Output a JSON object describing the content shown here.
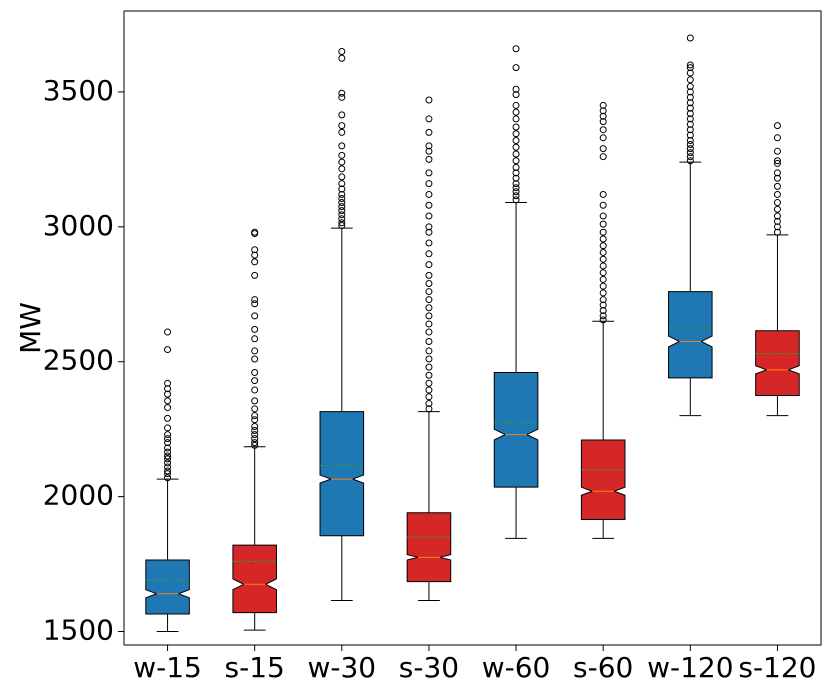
{
  "chart_data": {
    "type": "box",
    "title": "",
    "xlabel": "",
    "ylabel": "MW",
    "ylim": [
      1450,
      3800
    ],
    "yticks": [
      1500,
      2000,
      2500,
      3000,
      3500
    ],
    "ytick_labels": [
      "1500",
      "2000",
      "2500",
      "3000",
      "3500"
    ],
    "categories": [
      "w-15",
      "s-15",
      "w-30",
      "s-30",
      "w-60",
      "s-60",
      "w-120",
      "s-120"
    ],
    "colors": {
      "w": "#1f77b4",
      "s": "#d62728",
      "median": "#ff7f0e",
      "mean": "#2ca02c",
      "line": "#000000"
    },
    "boxes": [
      {
        "label": "w-15",
        "color_key": "w",
        "whisker_low": 1500,
        "q1": 1565,
        "median": 1640,
        "mean": 1690,
        "q3": 1765,
        "whisker_high": 2065,
        "notch": [
          1625,
          1655
        ],
        "outliers": [
          2070,
          2085,
          2095,
          2110,
          2125,
          2140,
          2150,
          2165,
          2180,
          2200,
          2215,
          2230,
          2255,
          2290,
          2330,
          2355,
          2380,
          2400,
          2420,
          2545,
          2610
        ]
      },
      {
        "label": "s-15",
        "color_key": "s",
        "whisker_low": 1505,
        "q1": 1570,
        "median": 1675,
        "mean": 1760,
        "q3": 1820,
        "whisker_high": 2185,
        "notch": [
          1655,
          1695
        ],
        "outliers": [
          2190,
          2200,
          2215,
          2230,
          2245,
          2260,
          2285,
          2300,
          2325,
          2355,
          2395,
          2430,
          2460,
          2510,
          2540,
          2585,
          2620,
          2670,
          2715,
          2730,
          2820,
          2870,
          2895,
          2915,
          2975,
          2980
        ]
      },
      {
        "label": "w-30",
        "color_key": "w",
        "whisker_low": 1615,
        "q1": 1855,
        "median": 2065,
        "mean": 2115,
        "q3": 2315,
        "whisker_high": 2995,
        "notch": [
          2050,
          2080
        ],
        "outliers": [
          3005,
          3015,
          3030,
          3045,
          3060,
          3075,
          3090,
          3105,
          3120,
          3140,
          3160,
          3185,
          3215,
          3240,
          3265,
          3300,
          3350,
          3375,
          3415,
          3480,
          3495,
          3625,
          3650
        ]
      },
      {
        "label": "s-30",
        "color_key": "s",
        "whisker_low": 1615,
        "q1": 1685,
        "median": 1775,
        "mean": 1850,
        "q3": 1940,
        "whisker_high": 2315,
        "notch": [
          1765,
          1785
        ],
        "outliers": [
          2325,
          2345,
          2370,
          2395,
          2420,
          2450,
          2480,
          2510,
          2540,
          2575,
          2610,
          2640,
          2670,
          2700,
          2730,
          2760,
          2790,
          2820,
          2860,
          2900,
          2940,
          2980,
          3000,
          3040,
          3080,
          3120,
          3160,
          3200,
          3250,
          3280,
          3300,
          3350,
          3400,
          3470
        ]
      },
      {
        "label": "w-60",
        "color_key": "w",
        "whisker_low": 1845,
        "q1": 2035,
        "median": 2230,
        "mean": 2275,
        "q3": 2460,
        "whisker_high": 3090,
        "notch": [
          2210,
          2250
        ],
        "outliers": [
          3100,
          3115,
          3130,
          3145,
          3160,
          3180,
          3200,
          3220,
          3245,
          3270,
          3295,
          3320,
          3345,
          3370,
          3400,
          3425,
          3450,
          3490,
          3510,
          3590,
          3660
        ]
      },
      {
        "label": "s-60",
        "color_key": "s",
        "whisker_low": 1845,
        "q1": 1915,
        "median": 2020,
        "mean": 2100,
        "q3": 2210,
        "whisker_high": 2650,
        "notch": [
          2005,
          2035
        ],
        "outliers": [
          2655,
          2670,
          2690,
          2710,
          2730,
          2755,
          2780,
          2805,
          2830,
          2855,
          2880,
          2905,
          2930,
          2955,
          2980,
          3010,
          3040,
          3080,
          3120,
          3260,
          3290,
          3330,
          3360,
          3390,
          3410,
          3430,
          3450
        ]
      },
      {
        "label": "w-120",
        "color_key": "w",
        "whisker_low": 2300,
        "q1": 2440,
        "median": 2575,
        "mean": 2625,
        "q3": 2760,
        "whisker_high": 3240,
        "notch": [
          2555,
          2595
        ],
        "outliers": [
          3245,
          3260,
          3275,
          3290,
          3305,
          3320,
          3340,
          3360,
          3380,
          3400,
          3420,
          3440,
          3460,
          3480,
          3500,
          3520,
          3545,
          3570,
          3590,
          3600,
          3700
        ]
      },
      {
        "label": "s-120",
        "color_key": "s",
        "whisker_low": 2300,
        "q1": 2375,
        "median": 2470,
        "mean": 2530,
        "q3": 2615,
        "whisker_high": 2970,
        "notch": [
          2455,
          2485
        ],
        "outliers": [
          2980,
          3000,
          3020,
          3040,
          3065,
          3090,
          3120,
          3150,
          3180,
          3200,
          3235,
          3245,
          3280,
          3330,
          3375
        ]
      }
    ]
  }
}
